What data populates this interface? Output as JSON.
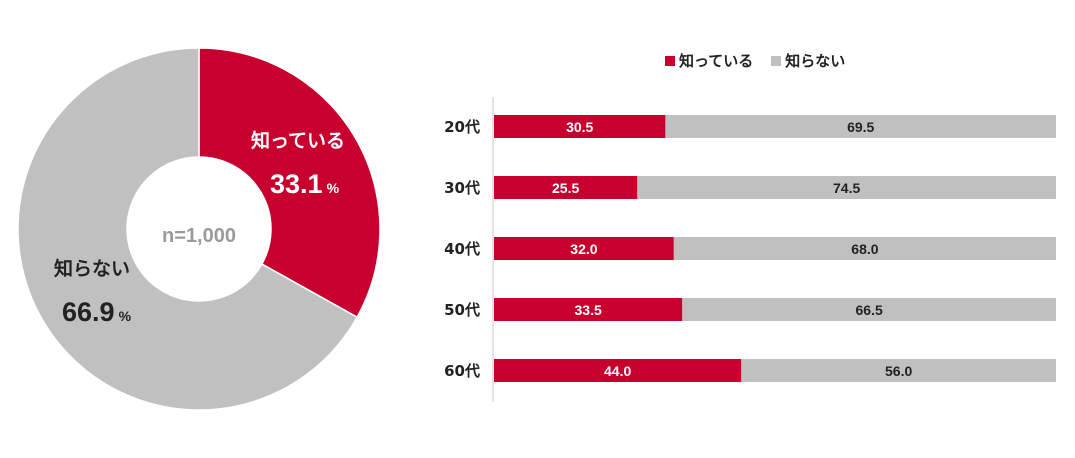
{
  "colors": {
    "known": "#c8002e",
    "unknown": "#c0c0c0"
  },
  "chart_data": [
    {
      "type": "pie",
      "center_label": "n=1,000",
      "unit": "%",
      "slices": [
        {
          "name": "知っている",
          "value": 33.1,
          "color": "#c8002e"
        },
        {
          "name": "知らない",
          "value": 66.9,
          "color": "#c0c0c0"
        }
      ]
    },
    {
      "type": "bar",
      "orientation": "horizontal",
      "stacked": true,
      "legend_position": "top",
      "categories": [
        "20代",
        "30代",
        "40代",
        "50代",
        "60代"
      ],
      "series": [
        {
          "name": "知っている",
          "values": [
            30.5,
            25.5,
            32.0,
            33.5,
            44.0
          ],
          "color": "#c8002e"
        },
        {
          "name": "知らない",
          "values": [
            69.5,
            74.5,
            68.0,
            66.5,
            56.0
          ],
          "color": "#c0c0c0"
        }
      ],
      "xlim": [
        0,
        100
      ]
    }
  ]
}
